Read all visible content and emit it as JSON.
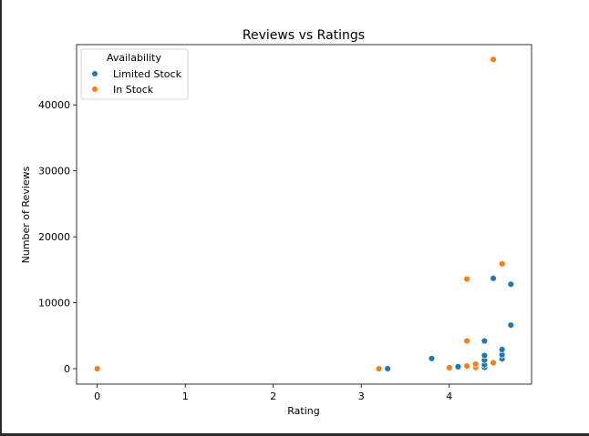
{
  "chart_data": {
    "type": "scatter",
    "title": "Reviews vs Ratings",
    "xlabel": "Rating",
    "ylabel": "Number of Reviews",
    "xlim": [
      -0.235,
      4.935
    ],
    "ylim": [
      -2340,
      49140
    ],
    "xticks": [
      0,
      1,
      2,
      3,
      4
    ],
    "yticks": [
      0,
      10000,
      20000,
      30000,
      40000
    ],
    "grid": false,
    "legend": {
      "title": "Availability",
      "placement": "top-left"
    },
    "series": [
      {
        "name": "Limited Stock",
        "color": "#1f77b4",
        "points": [
          {
            "x": 3.3,
            "y": 0
          },
          {
            "x": 3.8,
            "y": 1550
          },
          {
            "x": 4.1,
            "y": 300
          },
          {
            "x": 4.3,
            "y": 100
          },
          {
            "x": 4.4,
            "y": 200
          },
          {
            "x": 4.4,
            "y": 600
          },
          {
            "x": 4.4,
            "y": 1300
          },
          {
            "x": 4.4,
            "y": 2000
          },
          {
            "x": 4.4,
            "y": 4200
          },
          {
            "x": 4.5,
            "y": 13700
          },
          {
            "x": 4.6,
            "y": 1500
          },
          {
            "x": 4.6,
            "y": 2100
          },
          {
            "x": 4.6,
            "y": 2900
          },
          {
            "x": 4.7,
            "y": 6600
          },
          {
            "x": 4.7,
            "y": 12800
          }
        ]
      },
      {
        "name": "In Stock",
        "color": "#ff7f0e",
        "points": [
          {
            "x": 0,
            "y": 0
          },
          {
            "x": 3.2,
            "y": 0
          },
          {
            "x": 4.0,
            "y": 150
          },
          {
            "x": 4.2,
            "y": 400
          },
          {
            "x": 4.2,
            "y": 4200
          },
          {
            "x": 4.2,
            "y": 13600
          },
          {
            "x": 4.3,
            "y": 200
          },
          {
            "x": 4.3,
            "y": 700
          },
          {
            "x": 4.5,
            "y": 900
          },
          {
            "x": 4.5,
            "y": 46900
          },
          {
            "x": 4.6,
            "y": 15900
          }
        ]
      }
    ]
  }
}
